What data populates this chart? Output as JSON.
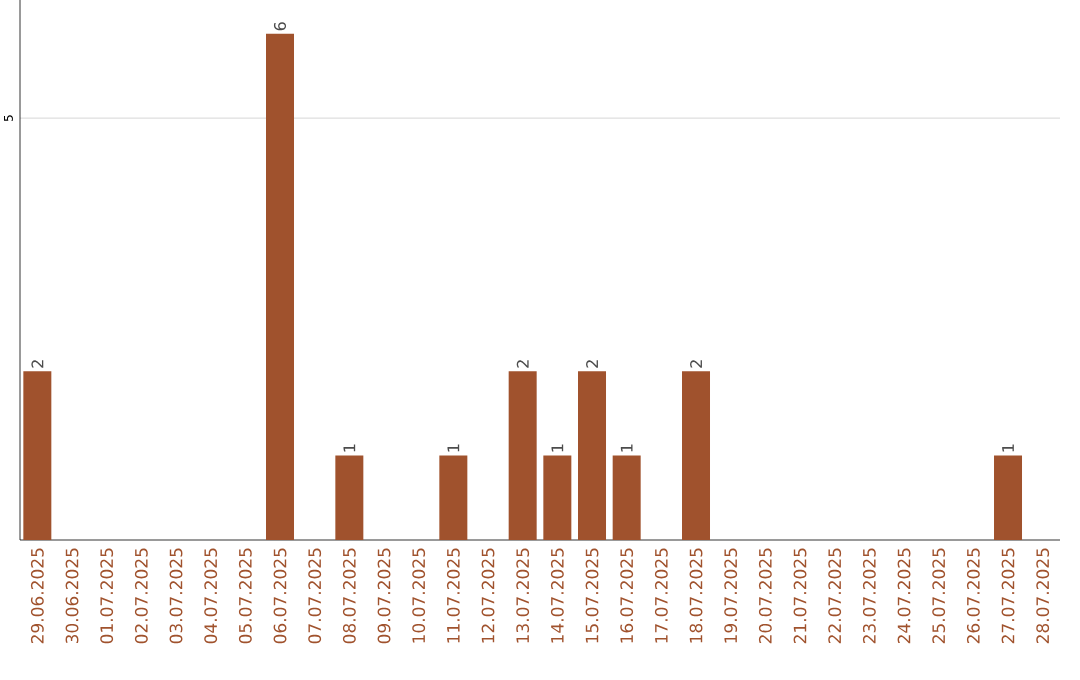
{
  "chart_data": {
    "type": "bar",
    "categories": [
      "29.06.2025",
      "30.06.2025",
      "01.07.2025",
      "02.07.2025",
      "03.07.2025",
      "04.07.2025",
      "05.07.2025",
      "06.07.2025",
      "07.07.2025",
      "08.07.2025",
      "09.07.2025",
      "10.07.2025",
      "11.07.2025",
      "12.07.2025",
      "13.07.2025",
      "14.07.2025",
      "15.07.2025",
      "16.07.2025",
      "17.07.2025",
      "18.07.2025",
      "19.07.2025",
      "20.07.2025",
      "21.07.2025",
      "22.07.2025",
      "23.07.2025",
      "24.07.2025",
      "25.07.2025",
      "26.07.2025",
      "27.07.2025",
      "28.07.2025"
    ],
    "values": [
      2,
      0,
      0,
      0,
      0,
      0,
      0,
      6,
      0,
      1,
      0,
      0,
      1,
      0,
      2,
      1,
      2,
      1,
      0,
      2,
      0,
      0,
      0,
      0,
      0,
      0,
      0,
      0,
      1,
      0
    ],
    "value_labels": [
      "2",
      null,
      null,
      null,
      null,
      null,
      null,
      "6",
      null,
      "1",
      null,
      null,
      "1",
      null,
      "2",
      "1",
      "2",
      "1",
      null,
      "2",
      null,
      null,
      null,
      null,
      null,
      null,
      null,
      null,
      "1",
      null
    ],
    "color": "#a0522d",
    "ylim": [
      0,
      6.4
    ],
    "yticks": [
      5
    ],
    "grid": "y"
  }
}
